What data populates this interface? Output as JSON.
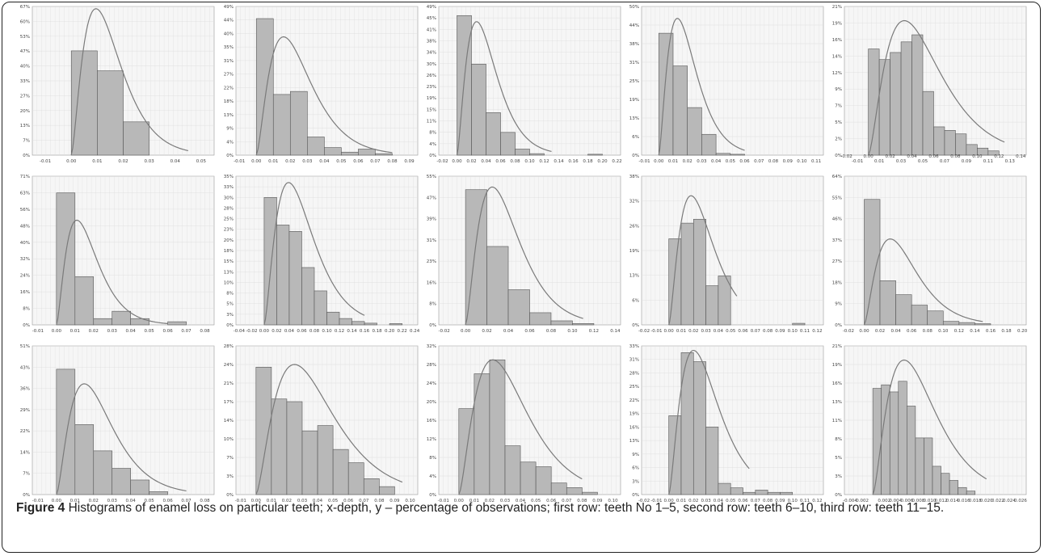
{
  "caption": {
    "label": "Figure 4",
    "text": "Histograms of enamel loss on particular teeth; x-depth, y – percentage of observations; first row: teeth No 1–5, second row: teeth 6–10, third row: teeth 11–15."
  },
  "colors": {
    "bar_fill": "#b8b8b8",
    "bar_stroke": "#555555",
    "curve": "#7a7a7a",
    "grid": "#dcdcdc",
    "plot_bg": "#f6f6f6"
  },
  "chart_data": [
    {
      "type": "bar",
      "tooth": "1",
      "y_ticks": [
        "0%",
        "7%",
        "13%",
        "20%",
        "27%",
        "33%",
        "40%",
        "47%",
        "53%",
        "60%",
        "67%"
      ],
      "ymax": 67,
      "x_ticks": [
        "-0.01",
        "0.00",
        "0.01",
        "0.02",
        "0.03",
        "0.04",
        "0.05"
      ],
      "xmin": -0.015,
      "xmax": 0.055,
      "bins": [
        [
          0.0,
          0.01,
          47
        ],
        [
          0.01,
          0.02,
          38
        ],
        [
          0.02,
          0.03,
          15
        ]
      ],
      "curve": {
        "mode": 0.0095,
        "peak": 66,
        "end": 0.045
      }
    },
    {
      "type": "bar",
      "tooth": "2",
      "y_ticks": [
        "0%",
        "4%",
        "9%",
        "13%",
        "18%",
        "22%",
        "27%",
        "31%",
        "35%",
        "40%",
        "44%",
        "49%"
      ],
      "ymax": 49,
      "x_ticks": [
        "-0.01",
        "0.00",
        "0.01",
        "0.02",
        "0.03",
        "0.04",
        "0.05",
        "0.06",
        "0.07",
        "0.08",
        "0.09"
      ],
      "xmin": -0.012,
      "xmax": 0.095,
      "bins": [
        [
          0.0,
          0.01,
          45
        ],
        [
          0.01,
          0.02,
          20
        ],
        [
          0.02,
          0.03,
          21
        ],
        [
          0.03,
          0.04,
          6
        ],
        [
          0.04,
          0.05,
          2.5
        ],
        [
          0.05,
          0.06,
          1
        ],
        [
          0.06,
          0.07,
          2
        ],
        [
          0.07,
          0.08,
          0.5
        ]
      ],
      "curve": {
        "mode": 0.016,
        "peak": 39,
        "end": 0.08
      }
    },
    {
      "type": "bar",
      "tooth": "3",
      "y_ticks": [
        "0%",
        "4%",
        "8%",
        "11%",
        "15%",
        "19%",
        "23%",
        "26%",
        "30%",
        "34%",
        "38%",
        "41%",
        "45%",
        "49%"
      ],
      "ymax": 49,
      "x_ticks": [
        "-0.02",
        "0.00",
        "0.02",
        "0.04",
        "0.06",
        "0.08",
        "0.10",
        "0.12",
        "0.14",
        "0.16",
        "0.18",
        "0.20",
        "0.22"
      ],
      "xmin": -0.025,
      "xmax": 0.225,
      "bins": [
        [
          0.0,
          0.02,
          46
        ],
        [
          0.02,
          0.04,
          30
        ],
        [
          0.04,
          0.06,
          14
        ],
        [
          0.06,
          0.08,
          7.5
        ],
        [
          0.08,
          0.1,
          2
        ],
        [
          0.1,
          0.12,
          0.5
        ],
        [
          0.18,
          0.2,
          0.3
        ]
      ],
      "curve": {
        "mode": 0.027,
        "peak": 44,
        "end": 0.13
      }
    },
    {
      "type": "bar",
      "tooth": "4",
      "y_ticks": [
        "0%",
        "6%",
        "13%",
        "19%",
        "25%",
        "31%",
        "38%",
        "44%",
        "50%"
      ],
      "ymax": 50,
      "x_ticks": [
        "-0.01",
        "0.00",
        "0.01",
        "0.02",
        "0.03",
        "0.04",
        "0.05",
        "0.06",
        "0.07",
        "0.08",
        "0.09",
        "0.10",
        "0.11"
      ],
      "xmin": -0.012,
      "xmax": 0.115,
      "bins": [
        [
          0.0,
          0.01,
          41
        ],
        [
          0.01,
          0.02,
          30
        ],
        [
          0.02,
          0.03,
          16
        ],
        [
          0.03,
          0.04,
          7
        ],
        [
          0.04,
          0.05,
          0.6
        ],
        [
          0.05,
          0.06,
          0.3
        ]
      ],
      "curve": {
        "mode": 0.013,
        "peak": 46,
        "end": 0.06
      }
    },
    {
      "type": "bar",
      "tooth": "5",
      "y_ticks": [
        "0%",
        "2%",
        "5%",
        "7%",
        "9%",
        "12%",
        "14%",
        "16%",
        "19%",
        "21%"
      ],
      "ymax": 21,
      "x_ticks_top": [
        "-0.02",
        "0.00",
        "0.02",
        "0.04",
        "0.06",
        "0.08",
        "0.10",
        "0.12",
        "0.14"
      ],
      "x_ticks": [
        "-0.01",
        "0.01",
        "0.03",
        "0.05",
        "0.07",
        "0.09",
        "0.11",
        "0.13"
      ],
      "xmin": -0.022,
      "xmax": 0.145,
      "bins": [
        [
          0.0,
          0.01,
          15
        ],
        [
          0.01,
          0.02,
          13.5
        ],
        [
          0.02,
          0.03,
          14.5
        ],
        [
          0.03,
          0.04,
          16
        ],
        [
          0.04,
          0.05,
          17
        ],
        [
          0.05,
          0.06,
          9
        ],
        [
          0.06,
          0.07,
          4
        ],
        [
          0.07,
          0.08,
          3.5
        ],
        [
          0.08,
          0.09,
          3
        ],
        [
          0.09,
          0.1,
          1.5
        ],
        [
          0.1,
          0.11,
          1
        ],
        [
          0.11,
          0.12,
          0.6
        ]
      ],
      "curve": {
        "mode": 0.033,
        "peak": 19,
        "end": 0.125
      }
    },
    {
      "type": "bar",
      "tooth": "6",
      "y_ticks": [
        "0%",
        "8%",
        "16%",
        "24%",
        "32%",
        "40%",
        "48%",
        "56%",
        "63%",
        "71%"
      ],
      "ymax": 71,
      "x_ticks": [
        "-0.01",
        "0.00",
        "0.01",
        "0.02",
        "0.03",
        "0.04",
        "0.05",
        "0.06",
        "0.07",
        "0.08"
      ],
      "xmin": -0.013,
      "xmax": 0.085,
      "bins": [
        [
          0.0,
          0.01,
          63
        ],
        [
          0.01,
          0.02,
          23
        ],
        [
          0.02,
          0.03,
          3
        ],
        [
          0.03,
          0.04,
          6.5
        ],
        [
          0.04,
          0.05,
          3
        ],
        [
          0.06,
          0.07,
          1.5
        ]
      ],
      "curve": {
        "mode": 0.011,
        "peak": 50,
        "end": 0.06
      }
    },
    {
      "type": "bar",
      "tooth": "7",
      "y_ticks": [
        "0%",
        "3%",
        "5%",
        "8%",
        "10%",
        "13%",
        "15%",
        "18%",
        "20%",
        "23%",
        "25%",
        "28%",
        "30%",
        "33%",
        "35%"
      ],
      "ymax": 35,
      "x_ticks": [
        "-0.04",
        "-0.02",
        "0.00",
        "0.02",
        "0.04",
        "0.06",
        "0.08",
        "0.10",
        "0.12",
        "0.14",
        "0.16",
        "0.18",
        "0.20",
        "0.22",
        "0.24"
      ],
      "xmin": -0.045,
      "xmax": 0.245,
      "bins": [
        [
          0.0,
          0.02,
          30
        ],
        [
          0.02,
          0.04,
          23.5
        ],
        [
          0.04,
          0.06,
          22
        ],
        [
          0.06,
          0.08,
          13.5
        ],
        [
          0.08,
          0.1,
          8
        ],
        [
          0.1,
          0.12,
          3
        ],
        [
          0.12,
          0.14,
          1.5
        ],
        [
          0.14,
          0.16,
          0.8
        ],
        [
          0.16,
          0.18,
          0.4
        ],
        [
          0.2,
          0.22,
          0.3
        ]
      ],
      "curve": {
        "mode": 0.039,
        "peak": 33.5,
        "end": 0.16
      }
    },
    {
      "type": "bar",
      "tooth": "8",
      "y_ticks": [
        "0%",
        "8%",
        "16%",
        "23%",
        "31%",
        "39%",
        "47%",
        "55%"
      ],
      "ymax": 55,
      "x_ticks": [
        "-0.02",
        "0.00",
        "0.02",
        "0.04",
        "0.06",
        "0.08",
        "0.10",
        "0.12",
        "0.14"
      ],
      "xmin": -0.025,
      "xmax": 0.145,
      "bins": [
        [
          0.0,
          0.02,
          50
        ],
        [
          0.02,
          0.04,
          29
        ],
        [
          0.04,
          0.06,
          13
        ],
        [
          0.06,
          0.08,
          4.5
        ],
        [
          0.08,
          0.1,
          1.5
        ],
        [
          0.1,
          0.12,
          0.5
        ]
      ],
      "curve": {
        "mode": 0.025,
        "peak": 51,
        "end": 0.11
      }
    },
    {
      "type": "bar",
      "tooth": "9",
      "y_ticks": [
        "0%",
        "6%",
        "13%",
        "19%",
        "26%",
        "32%",
        "38%"
      ],
      "ymax": 38,
      "x_ticks": [
        "-0.02",
        "-0.01",
        "0.00",
        "0.01",
        "0.02",
        "0.03",
        "0.04",
        "0.05",
        "0.06",
        "0.07",
        "0.08",
        "0.09",
        "0.10",
        "0.11",
        "0.12"
      ],
      "xmin": -0.022,
      "xmax": 0.125,
      "bins": [
        [
          0.0,
          0.01,
          22
        ],
        [
          0.01,
          0.02,
          26
        ],
        [
          0.02,
          0.03,
          27
        ],
        [
          0.03,
          0.04,
          10
        ],
        [
          0.04,
          0.05,
          12.5
        ],
        [
          0.1,
          0.11,
          0.4
        ]
      ],
      "curve": {
        "mode": 0.018,
        "peak": 33,
        "end": 0.055
      }
    },
    {
      "type": "bar",
      "tooth": "10",
      "y_ticks": [
        "0%",
        "9%",
        "18%",
        "27%",
        "37%",
        "46%",
        "55%",
        "64%"
      ],
      "ymax": 64,
      "x_ticks": [
        "-0.02",
        "0.00",
        "0.02",
        "0.04",
        "0.06",
        "0.08",
        "0.10",
        "0.12",
        "0.14",
        "0.16",
        "0.18",
        "0.20"
      ],
      "xmin": -0.025,
      "xmax": 0.205,
      "bins": [
        [
          0.0,
          0.02,
          54
        ],
        [
          0.02,
          0.04,
          19
        ],
        [
          0.04,
          0.06,
          13
        ],
        [
          0.06,
          0.08,
          8.5
        ],
        [
          0.08,
          0.1,
          6
        ],
        [
          0.1,
          0.12,
          1.5
        ],
        [
          0.12,
          0.14,
          1
        ],
        [
          0.14,
          0.16,
          0.5
        ]
      ],
      "curve": {
        "mode": 0.033,
        "peak": 37,
        "end": 0.15
      }
    },
    {
      "type": "bar",
      "tooth": "11",
      "y_ticks": [
        "0%",
        "7%",
        "14%",
        "22%",
        "29%",
        "36%",
        "43%",
        "51%"
      ],
      "ymax": 51,
      "x_ticks": [
        "-0.01",
        "0.00",
        "0.01",
        "0.02",
        "0.03",
        "0.04",
        "0.05",
        "0.06",
        "0.07",
        "0.08"
      ],
      "xmin": -0.013,
      "xmax": 0.085,
      "bins": [
        [
          0.0,
          0.01,
          43
        ],
        [
          0.01,
          0.02,
          24
        ],
        [
          0.02,
          0.03,
          15
        ],
        [
          0.03,
          0.04,
          9
        ],
        [
          0.04,
          0.05,
          5
        ],
        [
          0.05,
          0.06,
          1
        ]
      ],
      "curve": {
        "mode": 0.015,
        "peak": 38,
        "end": 0.07
      }
    },
    {
      "type": "bar",
      "tooth": "12",
      "y_ticks": [
        "0%",
        "3%",
        "7%",
        "10%",
        "14%",
        "17%",
        "21%",
        "24%",
        "28%"
      ],
      "ymax": 28,
      "x_ticks": [
        "-0.01",
        "0.00",
        "0.01",
        "0.02",
        "0.03",
        "0.04",
        "0.05",
        "0.06",
        "0.07",
        "0.08",
        "0.09",
        "0.10"
      ],
      "xmin": -0.013,
      "xmax": 0.105,
      "bins": [
        [
          0.0,
          0.01,
          24
        ],
        [
          0.01,
          0.02,
          18
        ],
        [
          0.02,
          0.03,
          17.5
        ],
        [
          0.03,
          0.04,
          12
        ],
        [
          0.04,
          0.05,
          13
        ],
        [
          0.05,
          0.06,
          8.5
        ],
        [
          0.06,
          0.07,
          6
        ],
        [
          0.07,
          0.08,
          3
        ],
        [
          0.08,
          0.09,
          1.5
        ]
      ],
      "curve": {
        "mode": 0.025,
        "peak": 24.5,
        "end": 0.095
      }
    },
    {
      "type": "bar",
      "tooth": "13",
      "y_ticks": [
        "0%",
        "4%",
        "8%",
        "12%",
        "16%",
        "20%",
        "24%",
        "28%",
        "32%"
      ],
      "ymax": 32,
      "x_ticks": [
        "-0.01",
        "0.00",
        "0.01",
        "0.02",
        "0.03",
        "0.04",
        "0.05",
        "0.06",
        "0.07",
        "0.08",
        "0.09",
        "0.10"
      ],
      "xmin": -0.013,
      "xmax": 0.105,
      "bins": [
        [
          0.0,
          0.01,
          18.5
        ],
        [
          0.01,
          0.02,
          26
        ],
        [
          0.02,
          0.03,
          29
        ],
        [
          0.03,
          0.04,
          10.5
        ],
        [
          0.04,
          0.05,
          7
        ],
        [
          0.05,
          0.06,
          6
        ],
        [
          0.06,
          0.07,
          2.5
        ],
        [
          0.07,
          0.08,
          1.5
        ],
        [
          0.08,
          0.09,
          0.5
        ]
      ],
      "curve": {
        "mode": 0.022,
        "peak": 29,
        "end": 0.08
      }
    },
    {
      "type": "bar",
      "tooth": "14",
      "y_ticks": [
        "0%",
        "3%",
        "6%",
        "9%",
        "13%",
        "16%",
        "19%",
        "22%",
        "25%",
        "28%",
        "31%",
        "33%"
      ],
      "ymax": 33,
      "x_ticks": [
        "-0.02",
        "-0.01",
        "0.00",
        "0.01",
        "0.02",
        "0.03",
        "0.04",
        "0.05",
        "0.06",
        "0.07",
        "0.08",
        "0.09",
        "0.10",
        "0.11",
        "0.12"
      ],
      "xmin": -0.022,
      "xmax": 0.125,
      "bins": [
        [
          0.0,
          0.01,
          17.5
        ],
        [
          0.01,
          0.02,
          31.5
        ],
        [
          0.02,
          0.03,
          29.5
        ],
        [
          0.03,
          0.04,
          15
        ],
        [
          0.04,
          0.05,
          2.5
        ],
        [
          0.05,
          0.06,
          1.5
        ],
        [
          0.06,
          0.07,
          0.5
        ],
        [
          0.07,
          0.08,
          1
        ],
        [
          0.08,
          0.09,
          0.5
        ],
        [
          0.09,
          0.1,
          0.5
        ]
      ],
      "curve": {
        "mode": 0.02,
        "peak": 32,
        "end": 0.065
      }
    },
    {
      "type": "bar",
      "tooth": "15",
      "y_ticks": [
        "0%",
        "3%",
        "5%",
        "8%",
        "11%",
        "13%",
        "16%",
        "19%",
        "21%"
      ],
      "ymax": 21,
      "x_ticks": [
        "-0.004",
        "-0.002",
        "0.002",
        "0.004",
        "0.006",
        "0.008",
        "0.010",
        "0.012",
        "0.014",
        "0.016",
        "0.018",
        "0.020",
        "0.022",
        "0.024",
        "0.026"
      ],
      "xmin": -0.005,
      "xmax": 0.027,
      "bins": [
        [
          0.0,
          0.0015,
          15
        ],
        [
          0.0015,
          0.003,
          15.5
        ],
        [
          0.003,
          0.0045,
          14.5
        ],
        [
          0.0045,
          0.006,
          16
        ],
        [
          0.006,
          0.0075,
          12.5
        ],
        [
          0.0075,
          0.009,
          8
        ],
        [
          0.009,
          0.0105,
          8
        ],
        [
          0.0105,
          0.012,
          4
        ],
        [
          0.012,
          0.0135,
          3
        ],
        [
          0.0135,
          0.015,
          2
        ],
        [
          0.015,
          0.0165,
          1
        ],
        [
          0.0165,
          0.018,
          0.5
        ]
      ],
      "curve": {
        "mode": 0.0055,
        "peak": 19,
        "end": 0.02
      }
    }
  ]
}
